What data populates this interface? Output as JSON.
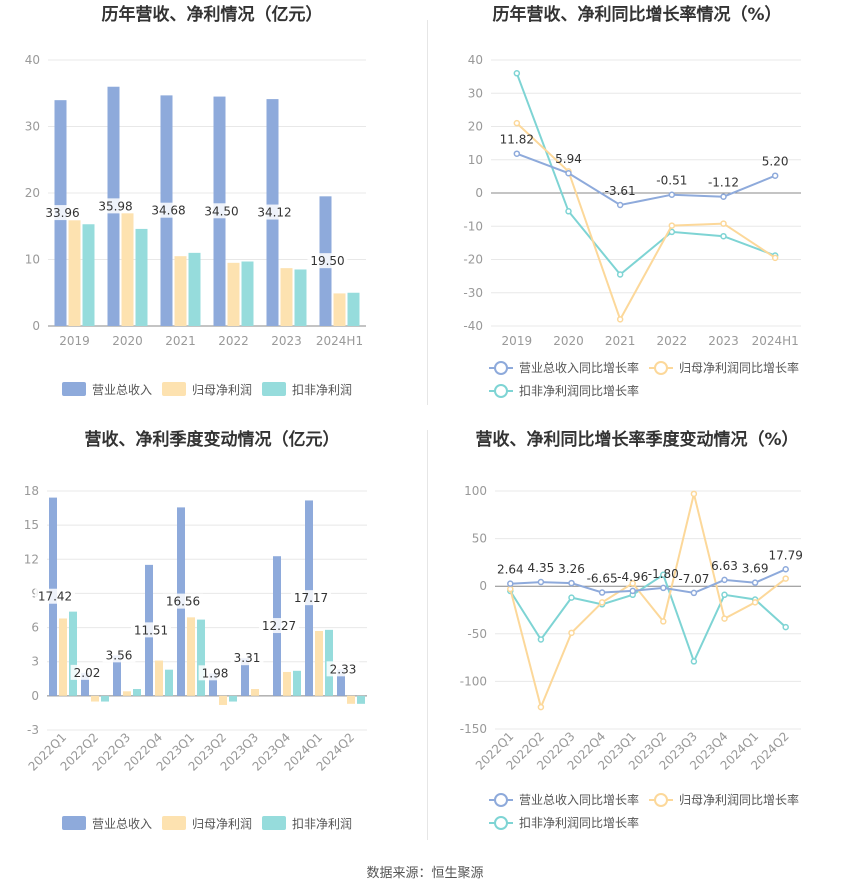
{
  "colors": {
    "revenue": "#8eaadb",
    "parent_profit": "#fde2b0",
    "deducted_profit": "#96dcdc",
    "line_revenue": "#8eaadb",
    "line_parent": "#fcd89a",
    "line_deducted": "#7ed4d4"
  },
  "footer": {
    "source": "数据来源：恒生聚源"
  },
  "chart_data": [
    {
      "type": "bar",
      "title": "历年营收、净利情况（亿元）",
      "categories": [
        "2019",
        "2020",
        "2021",
        "2022",
        "2023",
        "2024H1"
      ],
      "series": [
        {
          "name": "营业总收入",
          "values": [
            33.96,
            35.98,
            34.68,
            34.5,
            34.12,
            19.5
          ]
        },
        {
          "name": "归母净利润",
          "values": [
            15.9,
            17.0,
            10.5,
            9.5,
            8.7,
            4.9
          ]
        },
        {
          "name": "扣非净利润",
          "values": [
            15.3,
            14.6,
            11.0,
            9.7,
            8.5,
            5.0
          ]
        }
      ],
      "data_labels": [
        "33.96",
        "35.98",
        "34.68",
        "34.50",
        "34.12",
        "19.50"
      ],
      "ylim": [
        0,
        40
      ],
      "yticks": [
        0,
        10,
        20,
        30,
        40
      ],
      "grid": true,
      "legend": "bottom"
    },
    {
      "type": "line",
      "title": "历年营收、净利同比增长率情况（%）",
      "categories": [
        "2019",
        "2020",
        "2021",
        "2022",
        "2023",
        "2024H1"
      ],
      "series": [
        {
          "name": "营业总收入同比增长率",
          "values": [
            11.82,
            5.94,
            -3.61,
            -0.51,
            -1.12,
            5.2
          ]
        },
        {
          "name": "归母净利润同比增长率",
          "values": [
            21.0,
            6.5,
            -38.0,
            -9.8,
            -9.2,
            -19.5
          ]
        },
        {
          "name": "扣非净利润同比增长率",
          "values": [
            36.0,
            -5.5,
            -24.5,
            -11.7,
            -13.0,
            -18.8
          ]
        }
      ],
      "data_labels": [
        "11.82",
        "5.94",
        "-3.61",
        "-0.51",
        "-1.12",
        "5.20"
      ],
      "ylim": [
        -40,
        40
      ],
      "yticks": [
        -40,
        -30,
        -20,
        -10,
        0,
        10,
        20,
        30,
        40
      ],
      "grid": true,
      "legend": "bottom"
    },
    {
      "type": "bar",
      "title": "营收、净利季度变动情况（亿元）",
      "categories": [
        "2022Q1",
        "2022Q2",
        "2022Q3",
        "2022Q4",
        "2023Q1",
        "2023Q2",
        "2023Q3",
        "2023Q4",
        "2024Q1",
        "2024Q2"
      ],
      "series": [
        {
          "name": "营业总收入",
          "values": [
            17.42,
            2.02,
            3.56,
            11.51,
            16.56,
            1.98,
            3.31,
            12.27,
            17.17,
            2.33
          ]
        },
        {
          "name": "归母净利润",
          "values": [
            6.8,
            -0.5,
            0.4,
            3.1,
            6.9,
            -0.8,
            0.6,
            2.1,
            5.7,
            -0.7
          ]
        },
        {
          "name": "扣非净利润",
          "values": [
            7.4,
            -0.5,
            0.6,
            2.3,
            6.7,
            -0.5,
            0.0,
            2.2,
            5.8,
            -0.7
          ]
        }
      ],
      "data_labels": [
        "17.42",
        "2.02",
        "3.56",
        "11.51",
        "16.56",
        "1.98",
        "3.31",
        "12.27",
        "17.17",
        "2.33"
      ],
      "ylim": [
        -3,
        18
      ],
      "yticks": [
        -3,
        0,
        3,
        6,
        9,
        12,
        15,
        18
      ],
      "grid": true,
      "legend": "bottom"
    },
    {
      "type": "line",
      "title": "营收、净利同比增长率季度变动情况（%）",
      "categories": [
        "2022Q1",
        "2022Q2",
        "2022Q3",
        "2022Q4",
        "2023Q1",
        "2023Q2",
        "2023Q3",
        "2023Q4",
        "2024Q1",
        "2024Q2"
      ],
      "series": [
        {
          "name": "营业总收入同比增长率",
          "values": [
            2.64,
            4.35,
            3.26,
            -6.65,
            -4.96,
            -1.8,
            -7.07,
            6.63,
            3.69,
            17.79
          ]
        },
        {
          "name": "归母净利润同比增长率",
          "values": [
            -3,
            -127,
            -49,
            -17,
            3,
            -37,
            97,
            -34,
            -17,
            8
          ]
        },
        {
          "name": "扣非净利润同比增长率",
          "values": [
            -5,
            -56,
            -12,
            -19,
            -9,
            12,
            -79,
            -9,
            -14,
            -43
          ]
        }
      ],
      "data_labels": [
        "2.64",
        "4.35",
        "3.26",
        "-6.65",
        "-4.96",
        "-1.80",
        "-7.07",
        "6.63",
        "3.69",
        "17.79"
      ],
      "ylim": [
        -150,
        100
      ],
      "yticks": [
        -150,
        -100,
        -50,
        0,
        50,
        100
      ],
      "grid": true,
      "legend": "bottom"
    }
  ]
}
